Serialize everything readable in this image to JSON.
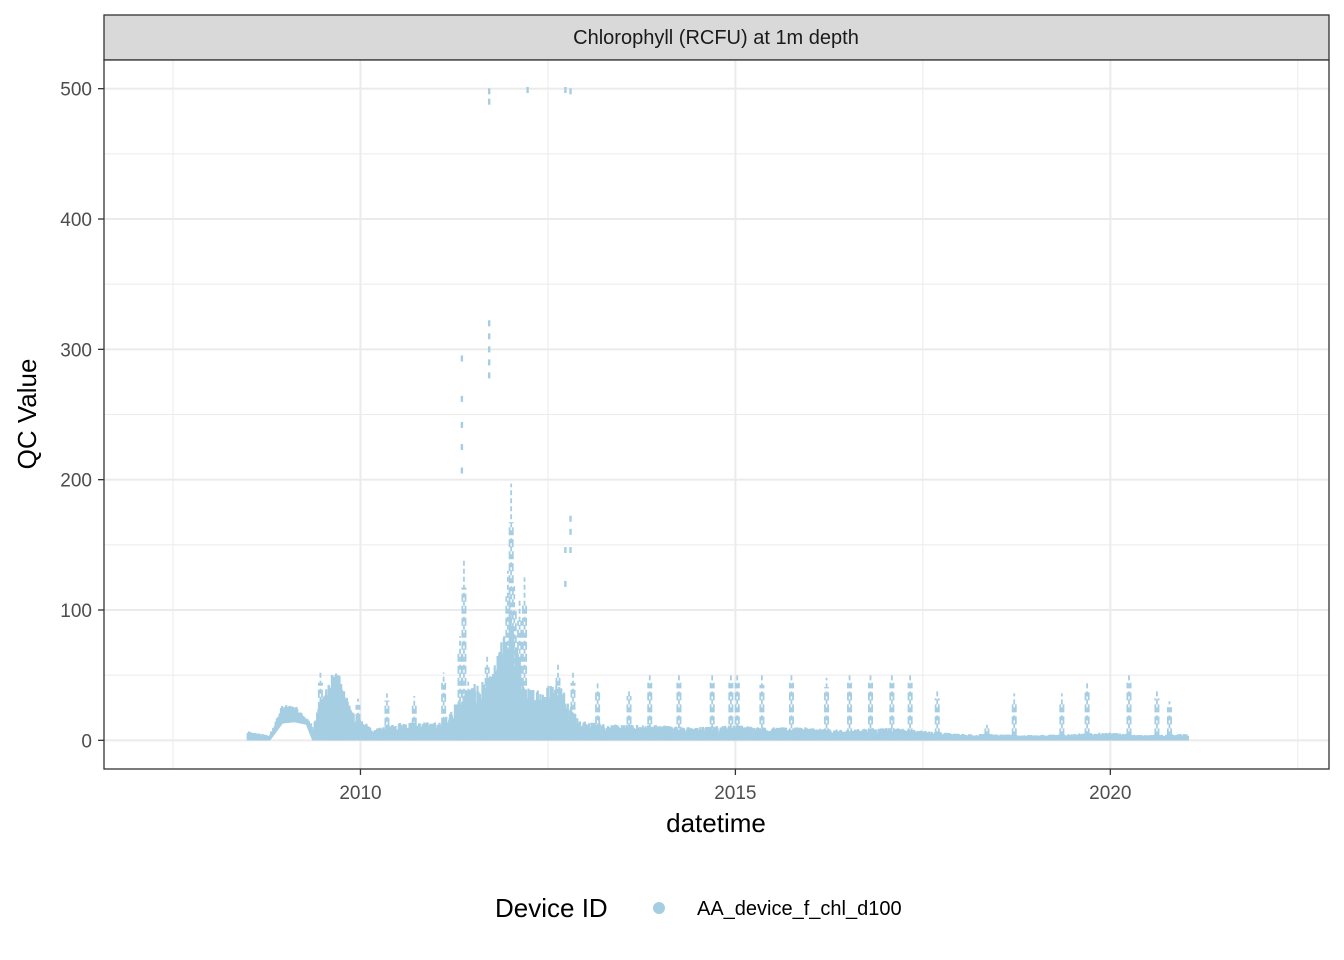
{
  "chart_data": {
    "type": "scatter",
    "facet_title": "Chlorophyll (RCFU) at 1m depth",
    "xlabel": "datetime",
    "ylabel": "QC Value",
    "x_scale": "date",
    "xlim": [
      "2006-08-01",
      "2022-12-01"
    ],
    "ylim": [
      -22,
      522
    ],
    "x_ticks": [
      {
        "label": "2010",
        "date": "2010-01-01"
      },
      {
        "label": "2015",
        "date": "2015-01-01"
      },
      {
        "label": "2020",
        "date": "2020-01-01"
      }
    ],
    "y_ticks": [
      0,
      100,
      200,
      300,
      400,
      500
    ],
    "grid": true,
    "legend": {
      "title": "Device ID",
      "position": "bottom",
      "entries": [
        {
          "label": "AA_device_f_chl_d100",
          "color": "#a6cee3"
        }
      ]
    },
    "series": [
      {
        "name": "AA_device_f_chl_d100",
        "color": "#a6cee3",
        "baseline": [
          {
            "x": "2008-07-01",
            "lo": 0,
            "hi": 7
          },
          {
            "x": "2008-10-15",
            "lo": 0,
            "hi": 4
          },
          {
            "x": "2008-12-15",
            "lo": 13,
            "hi": 27
          },
          {
            "x": "2009-02-15",
            "lo": 14,
            "hi": 27
          },
          {
            "x": "2009-04-15",
            "lo": 12,
            "hi": 17
          },
          {
            "x": "2009-05-15",
            "lo": 0,
            "hi": 12
          },
          {
            "x": "2009-08-01",
            "lo": 0,
            "hi": 52
          },
          {
            "x": "2009-09-15",
            "lo": 0,
            "hi": 52
          },
          {
            "x": "2009-11-15",
            "lo": 0,
            "hi": 25
          },
          {
            "x": "2010-03-01",
            "lo": 0,
            "hi": 8
          },
          {
            "x": "2010-07-01",
            "lo": 0,
            "hi": 14
          },
          {
            "x": "2010-10-01",
            "lo": 0,
            "hi": 14
          },
          {
            "x": "2011-02-01",
            "lo": 0,
            "hi": 14
          },
          {
            "x": "2011-06-01",
            "lo": 0,
            "hi": 40
          },
          {
            "x": "2011-10-01",
            "lo": 0,
            "hi": 50
          },
          {
            "x": "2012-01-01",
            "lo": 0,
            "hi": 100
          },
          {
            "x": "2012-03-15",
            "lo": 0,
            "hi": 40
          },
          {
            "x": "2012-09-01",
            "lo": 0,
            "hi": 45
          },
          {
            "x": "2012-12-01",
            "lo": 0,
            "hi": 15
          },
          {
            "x": "2013-06-01",
            "lo": 0,
            "hi": 12
          },
          {
            "x": "2014-01-01",
            "lo": 0,
            "hi": 12
          },
          {
            "x": "2014-06-01",
            "lo": 0,
            "hi": 10
          },
          {
            "x": "2015-01-01",
            "lo": 0,
            "hi": 12
          },
          {
            "x": "2015-06-01",
            "lo": 0,
            "hi": 10
          },
          {
            "x": "2016-01-01",
            "lo": 0,
            "hi": 10
          },
          {
            "x": "2016-06-01",
            "lo": 0,
            "hi": 8
          },
          {
            "x": "2017-01-01",
            "lo": 0,
            "hi": 10
          },
          {
            "x": "2017-06-01",
            "lo": 0,
            "hi": 8
          },
          {
            "x": "2018-01-01",
            "lo": 0,
            "hi": 5
          },
          {
            "x": "2018-06-01",
            "lo": 0,
            "hi": 5
          },
          {
            "x": "2019-01-01",
            "lo": 0,
            "hi": 4
          },
          {
            "x": "2019-06-01",
            "lo": 0,
            "hi": 5
          },
          {
            "x": "2020-01-01",
            "lo": 0,
            "hi": 6
          },
          {
            "x": "2020-06-01",
            "lo": 0,
            "hi": 4
          },
          {
            "x": "2021-01-15",
            "lo": 0,
            "hi": 5
          }
        ],
        "spikes": [
          {
            "x": "2009-06-20",
            "lo": 5,
            "hi": 52
          },
          {
            "x": "2009-09-10",
            "lo": 10,
            "hi": 50
          },
          {
            "x": "2009-12-20",
            "lo": 5,
            "hi": 32
          },
          {
            "x": "2010-05-10",
            "lo": 2,
            "hi": 36
          },
          {
            "x": "2010-09-20",
            "lo": 2,
            "hi": 34
          },
          {
            "x": "2011-02-10",
            "lo": 2,
            "hi": 52
          },
          {
            "x": "2011-05-01",
            "lo": 5,
            "hi": 80
          },
          {
            "x": "2011-05-20",
            "lo": 5,
            "hi": 138
          },
          {
            "x": "2011-06-10",
            "lo": 5,
            "hi": 45
          },
          {
            "x": "2011-09-10",
            "lo": 5,
            "hi": 66
          },
          {
            "x": "2011-12-20",
            "lo": 5,
            "hi": 130
          },
          {
            "x": "2012-01-05",
            "lo": 10,
            "hi": 197
          },
          {
            "x": "2012-01-20",
            "lo": 10,
            "hi": 120
          },
          {
            "x": "2012-02-15",
            "lo": 5,
            "hi": 108
          },
          {
            "x": "2012-03-10",
            "lo": 5,
            "hi": 125
          },
          {
            "x": "2012-08-20",
            "lo": 5,
            "hi": 60
          },
          {
            "x": "2012-11-01",
            "lo": 5,
            "hi": 52
          },
          {
            "x": "2013-03-01",
            "lo": 3,
            "hi": 46
          },
          {
            "x": "2013-08-01",
            "lo": 3,
            "hi": 40
          },
          {
            "x": "2013-11-10",
            "lo": 3,
            "hi": 52
          },
          {
            "x": "2014-04-01",
            "lo": 3,
            "hi": 52
          },
          {
            "x": "2014-09-10",
            "lo": 3,
            "hi": 52
          },
          {
            "x": "2014-12-10",
            "lo": 3,
            "hi": 52
          },
          {
            "x": "2015-01-10",
            "lo": 3,
            "hi": 52
          },
          {
            "x": "2015-05-10",
            "lo": 3,
            "hi": 50
          },
          {
            "x": "2015-10-01",
            "lo": 3,
            "hi": 52
          },
          {
            "x": "2016-03-20",
            "lo": 3,
            "hi": 48
          },
          {
            "x": "2016-07-10",
            "lo": 3,
            "hi": 52
          },
          {
            "x": "2016-10-20",
            "lo": 3,
            "hi": 52
          },
          {
            "x": "2017-02-01",
            "lo": 3,
            "hi": 52
          },
          {
            "x": "2017-05-01",
            "lo": 3,
            "hi": 52
          },
          {
            "x": "2017-09-10",
            "lo": 3,
            "hi": 38
          },
          {
            "x": "2018-05-10",
            "lo": 3,
            "hi": 12
          },
          {
            "x": "2018-09-20",
            "lo": 3,
            "hi": 36
          },
          {
            "x": "2019-05-10",
            "lo": 3,
            "hi": 36
          },
          {
            "x": "2019-09-10",
            "lo": 3,
            "hi": 46
          },
          {
            "x": "2020-04-01",
            "lo": 3,
            "hi": 52
          },
          {
            "x": "2020-08-15",
            "lo": 3,
            "hi": 38
          },
          {
            "x": "2020-10-15",
            "lo": 3,
            "hi": 30
          }
        ],
        "outliers": [
          {
            "x": "2011-05-10",
            "y": 293
          },
          {
            "x": "2011-05-10",
            "y": 262
          },
          {
            "x": "2011-05-10",
            "y": 242
          },
          {
            "x": "2011-05-10",
            "y": 225
          },
          {
            "x": "2011-05-10",
            "y": 207
          },
          {
            "x": "2011-09-20",
            "y": 498
          },
          {
            "x": "2011-09-20",
            "y": 490
          },
          {
            "x": "2011-09-20",
            "y": 320
          },
          {
            "x": "2011-09-20",
            "y": 310
          },
          {
            "x": "2011-09-20",
            "y": 300
          },
          {
            "x": "2011-09-20",
            "y": 290
          },
          {
            "x": "2011-09-20",
            "y": 280
          },
          {
            "x": "2012-03-25",
            "y": 499
          },
          {
            "x": "2012-09-25",
            "y": 499
          },
          {
            "x": "2012-10-20",
            "y": 498
          },
          {
            "x": "2012-10-20",
            "y": 170
          },
          {
            "x": "2012-10-20",
            "y": 160
          },
          {
            "x": "2012-10-20",
            "y": 146
          },
          {
            "x": "2012-09-25",
            "y": 146
          },
          {
            "x": "2012-09-25",
            "y": 120
          }
        ]
      }
    ]
  }
}
